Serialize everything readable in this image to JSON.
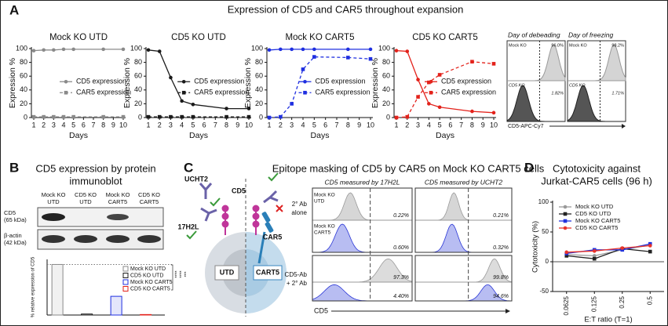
{
  "panel_labels": [
    "A",
    "B",
    "C",
    "D"
  ],
  "panel_a": {
    "title": "Expression of CD5 and CAR5 throughout expansion"
  },
  "chart_data": [
    {
      "type": "line",
      "title": "Mock KO UTD",
      "x": [
        1,
        2,
        3,
        4,
        5,
        8,
        10
      ],
      "xlim": [
        1,
        10
      ],
      "xticks": [
        1,
        2,
        3,
        4,
        5,
        6,
        7,
        8,
        9,
        10
      ],
      "ylim": [
        0,
        100
      ],
      "yticks": [
        0,
        20,
        40,
        60,
        80,
        100
      ],
      "xlabel": "Days",
      "ylabel": "Expression %",
      "legend": "right",
      "series": [
        {
          "name": "CD5 expression",
          "color": "#8a8a8a",
          "marker": "circle",
          "dashed": false,
          "values": [
            97,
            98,
            98,
            99,
            99,
            99,
            99
          ]
        },
        {
          "name": "CAR5 expression",
          "color": "#8a8a8a",
          "marker": "square",
          "dashed": true,
          "values": [
            1,
            1,
            1,
            1,
            1,
            1,
            1
          ]
        }
      ]
    },
    {
      "type": "line",
      "title": "CD5 KO UTD",
      "x": [
        1,
        2,
        3,
        4,
        5,
        8,
        10
      ],
      "xlim": [
        1,
        10
      ],
      "xticks": [
        1,
        2,
        3,
        4,
        5,
        6,
        7,
        8,
        9,
        10
      ],
      "ylim": [
        0,
        100
      ],
      "yticks": [
        0,
        20,
        40,
        60,
        80,
        100
      ],
      "xlabel": "Days",
      "ylabel": "Expression %",
      "legend": "right",
      "series": [
        {
          "name": "CD5 expression",
          "color": "#1a1a1a",
          "marker": "circle",
          "dashed": false,
          "values": [
            98,
            96,
            58,
            24,
            19,
            13,
            13
          ]
        },
        {
          "name": "CAR5 expression",
          "color": "#1a1a1a",
          "marker": "square",
          "dashed": true,
          "values": [
            1,
            1,
            1,
            1,
            1,
            1,
            1
          ]
        }
      ]
    },
    {
      "type": "line",
      "title": "Mock KO CART5",
      "x": [
        1,
        2,
        3,
        4,
        5,
        8,
        10
      ],
      "xlim": [
        1,
        10
      ],
      "xticks": [
        1,
        2,
        3,
        4,
        5,
        6,
        7,
        8,
        9,
        10
      ],
      "ylim": [
        0,
        100
      ],
      "yticks": [
        0,
        20,
        40,
        60,
        80,
        100
      ],
      "xlabel": "Days",
      "ylabel": "Expression %",
      "legend": "right",
      "series": [
        {
          "name": "CD5 expression",
          "color": "#1f2fe0",
          "marker": "circle",
          "dashed": false,
          "values": [
            98,
            99,
            99,
            99,
            99,
            99,
            99
          ]
        },
        {
          "name": "CAR5 expression",
          "color": "#1f2fe0",
          "marker": "square",
          "dashed": true,
          "values": [
            0,
            1,
            20,
            70,
            88,
            87,
            85
          ]
        }
      ]
    },
    {
      "type": "line",
      "title": "CD5 KO CART5",
      "x": [
        1,
        2,
        3,
        4,
        5,
        8,
        10
      ],
      "xlim": [
        1,
        10
      ],
      "xticks": [
        1,
        2,
        3,
        4,
        5,
        6,
        7,
        8,
        9,
        10
      ],
      "ylim": [
        0,
        100
      ],
      "yticks": [
        0,
        20,
        40,
        60,
        80,
        100
      ],
      "xlabel": "Days",
      "ylabel": "Expression %",
      "legend": "right",
      "series": [
        {
          "name": "CD5 expression",
          "color": "#e3221b",
          "marker": "circle",
          "dashed": false,
          "values": [
            97,
            96,
            55,
            20,
            15,
            9,
            7
          ]
        },
        {
          "name": "CAR5 expression",
          "color": "#e3221b",
          "marker": "square",
          "dashed": true,
          "values": [
            0,
            1,
            30,
            51,
            62,
            81,
            78
          ]
        }
      ]
    },
    {
      "type": "bar",
      "categories": [
        "Mock KO UTD",
        "CD5 KO UTD",
        "Mock KO CART5",
        "CD5 KO CART5"
      ],
      "values": [
        100,
        2,
        37,
        1
      ],
      "colors": [
        "#8a8a8a",
        "#1a1a1a",
        "#1f2fe0",
        "#e3221b"
      ],
      "ylim": [
        0,
        110
      ],
      "reference_line": 100,
      "ylabel": "% relative expression of CD5",
      "legend": "right",
      "annotations": [
        "****",
        "****",
        "***"
      ]
    },
    {
      "type": "line",
      "title": [
        "Cytotoxicity against",
        "Jurkat-CAR5 cells (96 h)"
      ],
      "categories": [
        "0.0625",
        "0.125",
        "0.25",
        "0.5"
      ],
      "ylim": [
        -50,
        100
      ],
      "yticks": [
        -50,
        0,
        50,
        100
      ],
      "xlabel": "E:T ratio (T=1)",
      "ylabel": "Cytotoxicity (%)",
      "legend": "top-left",
      "series": [
        {
          "name": "Mock KO UTD",
          "color": "#999999",
          "marker": "circle",
          "dashed": false,
          "values": [
            12,
            10,
            20,
            28
          ]
        },
        {
          "name": "CD5 KO UTD",
          "color": "#222222",
          "marker": "square",
          "dashed": false,
          "values": [
            10,
            5,
            22,
            17
          ]
        },
        {
          "name": "Mock KO CART5",
          "color": "#2233dd",
          "marker": "square",
          "dashed": false,
          "values": [
            14,
            20,
            20,
            30
          ]
        },
        {
          "name": "CD5 KO CART5",
          "color": "#e8332a",
          "marker": "circle",
          "dashed": false,
          "values": [
            16,
            18,
            23,
            27
          ]
        }
      ]
    }
  ],
  "flow": {
    "panels": [
      {
        "title": "Day of debeading",
        "top_label": "Mock KO",
        "top_pct": "96.0%",
        "bottom_label": "CD5 KO",
        "bottom_pct": "1.82%"
      },
      {
        "title": "Day of freezing",
        "top_label": "Mock KO",
        "top_pct": "98.2%",
        "bottom_label": "CD5 KO",
        "bottom_pct": "1.71%"
      }
    ],
    "xlabel": "CD5-APC-Cy7"
  },
  "panel_b": {
    "title": [
      "CD5 expression by protein",
      "immunoblot"
    ],
    "lanes": [
      [
        "Mock KO",
        "UTD"
      ],
      [
        "CD5 KO",
        "UTD"
      ],
      [
        "Mock KO",
        "CART5"
      ],
      [
        "CD5 KO",
        "CART5"
      ]
    ],
    "bands": [
      [
        "CD5",
        "(65 kDa)"
      ],
      [
        "β-actin",
        "(42 kDa)"
      ]
    ]
  },
  "panel_c": {
    "title": "Epitope masking of CD5 by CAR5 on Mock KO CART5 cells",
    "diagram": {
      "ucht2": "UCHT2",
      "h2l": "17H2L",
      "cd5": "CD5",
      "car5": "CAR5",
      "utd": "UTD",
      "cart5": "CART5"
    },
    "columns": [
      "CD5 measured by 17H2L",
      "CD5 measured by UCHT2"
    ],
    "rows": [
      [
        "2° Ab",
        "alone"
      ],
      [
        "CD5-Ab",
        "+ 2° Ab"
      ]
    ],
    "samples": [
      [
        "Mock KO",
        "UTD"
      ],
      [
        "Mock KO",
        "CART5"
      ]
    ],
    "percentages": [
      [
        "0.22%",
        "0.21%"
      ],
      [
        "0.60%",
        "0.32%"
      ],
      [
        "97.3%",
        "99.8%"
      ],
      [
        "4.40%",
        "94.6%"
      ]
    ],
    "xlabel": "CD5"
  }
}
